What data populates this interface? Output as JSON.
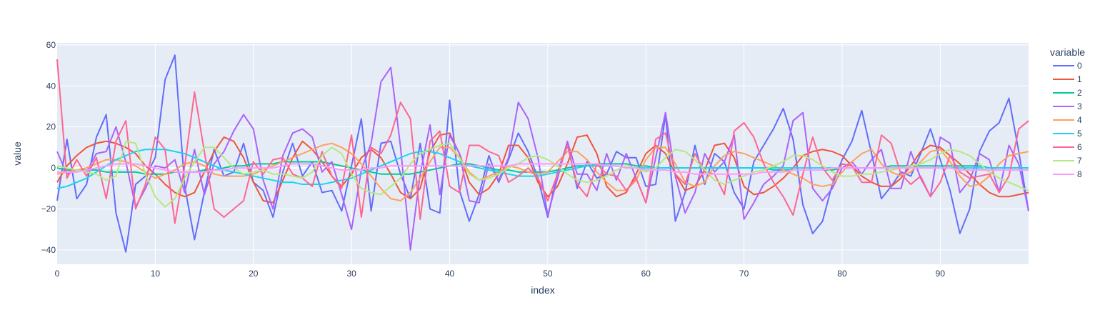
{
  "chart_data": {
    "type": "line",
    "xlabel": "index",
    "ylabel": "value",
    "xlim": [
      0,
      99
    ],
    "ylim": [
      -47,
      61
    ],
    "x_ticks": [
      0,
      10,
      20,
      30,
      40,
      50,
      60,
      70,
      80,
      90
    ],
    "y_ticks": [
      -40,
      -20,
      0,
      20,
      40,
      60
    ],
    "grid": true,
    "plot_background": "#E5ECF6",
    "grid_color": "#ffffff",
    "text_color": "#2a3f5f",
    "legend": {
      "title": "variable",
      "placement": "right"
    },
    "x": [
      0,
      1,
      2,
      3,
      4,
      5,
      6,
      7,
      8,
      9,
      10,
      11,
      12,
      13,
      14,
      15,
      16,
      17,
      18,
      19,
      20,
      21,
      22,
      23,
      24,
      25,
      26,
      27,
      28,
      29,
      30,
      31,
      32,
      33,
      34,
      35,
      36,
      37,
      38,
      39,
      40,
      41,
      42,
      43,
      44,
      45,
      46,
      47,
      48,
      49,
      50,
      51,
      52,
      53,
      54,
      55,
      56,
      57,
      58,
      59,
      60,
      61,
      62,
      63,
      64,
      65,
      66,
      67,
      68,
      69,
      70,
      71,
      72,
      73,
      74,
      75,
      76,
      77,
      78,
      79,
      80,
      81,
      82,
      83,
      84,
      85,
      86,
      87,
      88,
      89,
      90,
      91,
      92,
      93,
      94,
      95,
      96,
      97,
      98,
      99
    ],
    "series": [
      {
        "name": "0",
        "color": "#636efa",
        "values": [
          -16,
          14,
          -15,
          -8,
          15,
          26,
          -22,
          -41,
          -8,
          -4,
          5,
          43,
          55,
          -9,
          -35,
          -12,
          9,
          -4,
          -2,
          12,
          -7,
          -11,
          -24,
          -2,
          12,
          -4,
          3,
          -12,
          -11,
          -21,
          1,
          24,
          -21,
          12,
          13,
          -3,
          -15,
          12,
          -20,
          -22,
          33,
          -11,
          -26,
          -13,
          6,
          -7,
          4,
          17,
          8,
          -5,
          -24,
          -2,
          12,
          -10,
          3,
          -5,
          -3,
          8,
          5,
          5,
          -9,
          -8,
          26,
          -26,
          -12,
          11,
          -8,
          7,
          3,
          -12,
          -20,
          3,
          11,
          19,
          29,
          14,
          -18,
          -32,
          -26,
          -8,
          4,
          13,
          28,
          7,
          -15,
          -9,
          -2,
          -4,
          7,
          19,
          4,
          -11,
          -32,
          -20,
          8,
          18,
          22,
          34,
          8,
          -21
        ]
      },
      {
        "name": "1",
        "color": "#EF553B",
        "values": [
          -7,
          1,
          6,
          10,
          12,
          13,
          12,
          10,
          7,
          1,
          -3,
          -8,
          -12,
          -14,
          -12,
          -2,
          8,
          15,
          13,
          5,
          -7,
          -16,
          -17,
          -6,
          5,
          13,
          9,
          3,
          -4,
          -9,
          -3,
          5,
          9,
          5,
          -3,
          -12,
          -15,
          -10,
          8,
          16,
          17,
          7,
          -7,
          -13,
          -10,
          -3,
          11,
          11,
          5,
          -7,
          -14,
          -9,
          2,
          15,
          16,
          7,
          -9,
          -14,
          -12,
          -3,
          7,
          11,
          7,
          -3,
          -11,
          -9,
          -1,
          11,
          12,
          5,
          -9,
          -13,
          -12,
          -9,
          -5,
          0,
          6,
          8,
          9,
          8,
          6,
          1,
          -4,
          -7,
          -9,
          -9,
          -5,
          1,
          8,
          11,
          10,
          6,
          2,
          -3,
          -8,
          -12,
          -14,
          -14,
          -13,
          -12
        ]
      },
      {
        "name": "2",
        "color": "#00cc96",
        "values": [
          0,
          -1,
          -1,
          -1,
          -1,
          -2,
          -2,
          -2,
          -2,
          -3,
          -3,
          -3,
          -2,
          -2,
          -2,
          -1,
          -1,
          0,
          1,
          1,
          2,
          2,
          2,
          3,
          3,
          3,
          3,
          3,
          2,
          1,
          0,
          -1,
          -2,
          -3,
          -3,
          -3,
          -3,
          -2,
          -1,
          0,
          1,
          2,
          2,
          1,
          0,
          -1,
          -1,
          -2,
          -2,
          -2,
          -2,
          -1,
          0,
          1,
          1,
          2,
          2,
          2,
          2,
          1,
          1,
          0,
          0,
          0,
          0,
          0,
          0,
          0,
          0,
          0,
          0,
          0,
          0,
          -1,
          -1,
          -1,
          -1,
          -1,
          -1,
          -1,
          0,
          0,
          0,
          0,
          0,
          1,
          1,
          1,
          1,
          1,
          1,
          1,
          1,
          1,
          1,
          0,
          0,
          0,
          0,
          0
        ]
      },
      {
        "name": "3",
        "color": "#ab63fa",
        "values": [
          8,
          -3,
          -1,
          -2,
          7,
          8,
          20,
          3,
          -19,
          -10,
          1,
          0,
          4,
          -12,
          9,
          -13,
          2,
          8,
          18,
          26,
          19,
          -6,
          -20,
          6,
          17,
          19,
          15,
          -2,
          3,
          -13,
          -30,
          -1,
          12,
          42,
          49,
          10,
          -40,
          -3,
          21,
          -13,
          16,
          7,
          -16,
          -17,
          2,
          -6,
          5,
          32,
          24,
          5,
          -23,
          -5,
          13,
          -3,
          -3,
          -11,
          7,
          -6,
          7,
          -5,
          -17,
          5,
          27,
          -4,
          -22,
          -12,
          7,
          -2,
          3,
          16,
          -25,
          -17,
          -8,
          -4,
          1,
          23,
          27,
          -10,
          -16,
          -10,
          0,
          3,
          -3,
          4,
          9,
          -10,
          -10,
          8,
          -5,
          -14,
          15,
          12,
          -12,
          -6,
          7,
          4,
          -12,
          11,
          2,
          -21
        ]
      },
      {
        "name": "4",
        "color": "#FFA15A",
        "values": [
          -3,
          -2,
          -1,
          0,
          2,
          4,
          4,
          3,
          1,
          -2,
          -5,
          -3,
          -1,
          2,
          3,
          1,
          -3,
          -4,
          -4,
          -4,
          -3,
          -1,
          1,
          3,
          5,
          7,
          9,
          11,
          12,
          10,
          7,
          2,
          -4,
          -10,
          -15,
          -16,
          -12,
          -5,
          3,
          10,
          10,
          5,
          -2,
          -6,
          -4,
          -2,
          1,
          0,
          -2,
          -3,
          -2,
          3,
          8,
          8,
          4,
          -2,
          -7,
          -11,
          -11,
          -6,
          4,
          10,
          10,
          2,
          -7,
          -9,
          -7,
          1,
          6,
          8,
          7,
          5,
          3,
          1,
          -1,
          -3,
          -5,
          -8,
          -9,
          -8,
          -2,
          3,
          7,
          9,
          2,
          -2,
          -4,
          -2,
          3,
          8,
          9,
          3,
          -4,
          -9,
          -8,
          -4,
          2,
          6,
          7,
          8
        ]
      },
      {
        "name": "5",
        "color": "#19d3f3",
        "values": [
          -10,
          -9,
          -7,
          -5,
          -2,
          1,
          4,
          6,
          8,
          9,
          9,
          9,
          8,
          7,
          5,
          3,
          1,
          -1,
          -2,
          -3,
          -4,
          -5,
          -6,
          -7,
          -7,
          -8,
          -8,
          -8,
          -7,
          -6,
          -5,
          -3,
          -1,
          1,
          3,
          5,
          7,
          8,
          8,
          7,
          5,
          3,
          1,
          0,
          -1,
          -2,
          -3,
          -4,
          -4,
          -4,
          -3,
          -2,
          -1,
          0,
          1,
          1,
          1,
          1,
          0,
          0,
          0,
          0,
          0,
          0,
          0,
          0,
          0,
          0,
          0,
          0,
          0,
          0,
          0,
          0,
          0,
          0,
          0,
          0,
          0,
          0,
          0,
          0,
          0,
          0,
          0,
          0,
          0,
          0,
          0,
          0,
          0,
          0,
          0,
          0,
          0,
          0,
          0,
          0,
          0,
          0
        ]
      },
      {
        "name": "6",
        "color": "#FF6692",
        "values": [
          53,
          -5,
          4,
          -4,
          5,
          -15,
          13,
          23,
          -20,
          -8,
          15,
          9,
          -27,
          1,
          37,
          8,
          -20,
          -24,
          -20,
          -16,
          3,
          -3,
          4,
          5,
          -3,
          -5,
          -9,
          8,
          -4,
          -10,
          16,
          -24,
          10,
          7,
          16,
          32,
          24,
          -25,
          13,
          18,
          -9,
          -12,
          11,
          11,
          8,
          6,
          -7,
          -4,
          0,
          -5,
          -16,
          -3,
          11,
          -8,
          -14,
          2,
          -3,
          -4,
          -11,
          -5,
          -17,
          14,
          17,
          -3,
          -8,
          7,
          -2,
          -3,
          -13,
          18,
          22,
          15,
          2,
          -7,
          -14,
          -23,
          -3,
          15,
          0,
          -6,
          2,
          1,
          -7,
          -7,
          16,
          12,
          -3,
          -8,
          -4,
          -14,
          -7,
          6,
          -2,
          -5,
          -4,
          -3,
          -12,
          -4,
          19,
          23
        ]
      },
      {
        "name": "7",
        "color": "#B6E880",
        "values": [
          1,
          0,
          -1,
          -2,
          -3,
          -6,
          -4,
          13,
          12,
          -3,
          -14,
          -19,
          -15,
          -5,
          3,
          10,
          10,
          5,
          0,
          -3,
          -2,
          -1,
          -3,
          -3,
          -4,
          -5,
          -2,
          6,
          10,
          7,
          -3,
          -10,
          -12,
          -13,
          -9,
          -5,
          2,
          7,
          9,
          11,
          12,
          5,
          -3,
          -6,
          -5,
          -3,
          0,
          2,
          5,
          6,
          4,
          1,
          -3,
          -6,
          -7,
          -6,
          -4,
          -1,
          1,
          0,
          -2,
          0,
          5,
          9,
          8,
          4,
          -1,
          -6,
          -8,
          -6,
          -4,
          -2,
          -1,
          1,
          3,
          6,
          6,
          4,
          1,
          -2,
          -4,
          -4,
          -3,
          -3,
          -2,
          -1,
          0,
          1,
          2,
          4,
          7,
          9,
          8,
          6,
          2,
          -2,
          -5,
          -7,
          -9,
          -11
        ]
      },
      {
        "name": "8",
        "color": "#FF97FF",
        "values": [
          -2,
          -2,
          -2,
          -1,
          0,
          1,
          2,
          2,
          2,
          1,
          0,
          -1,
          -2,
          -2,
          -2,
          -2,
          -1,
          -1,
          0,
          0,
          0,
          0,
          0,
          1,
          2,
          2,
          2,
          1,
          0,
          -1,
          -1,
          -1,
          0,
          0,
          1,
          1,
          1,
          1,
          1,
          1,
          1,
          1,
          1,
          1,
          1,
          1,
          1,
          2,
          2,
          2,
          2,
          2,
          2,
          2,
          2,
          2,
          1,
          1,
          0,
          0,
          -1,
          -1,
          -1,
          -2,
          -2,
          -3,
          -3,
          -3,
          -3,
          -3,
          -3,
          -3,
          -2,
          -2,
          -2,
          -1,
          -1,
          -1,
          -1,
          0,
          0,
          0,
          0,
          0,
          0,
          0,
          0,
          0,
          0,
          0,
          0,
          0,
          -1,
          -1,
          -1,
          -1,
          -1,
          -1,
          -1,
          -1
        ]
      }
    ]
  }
}
